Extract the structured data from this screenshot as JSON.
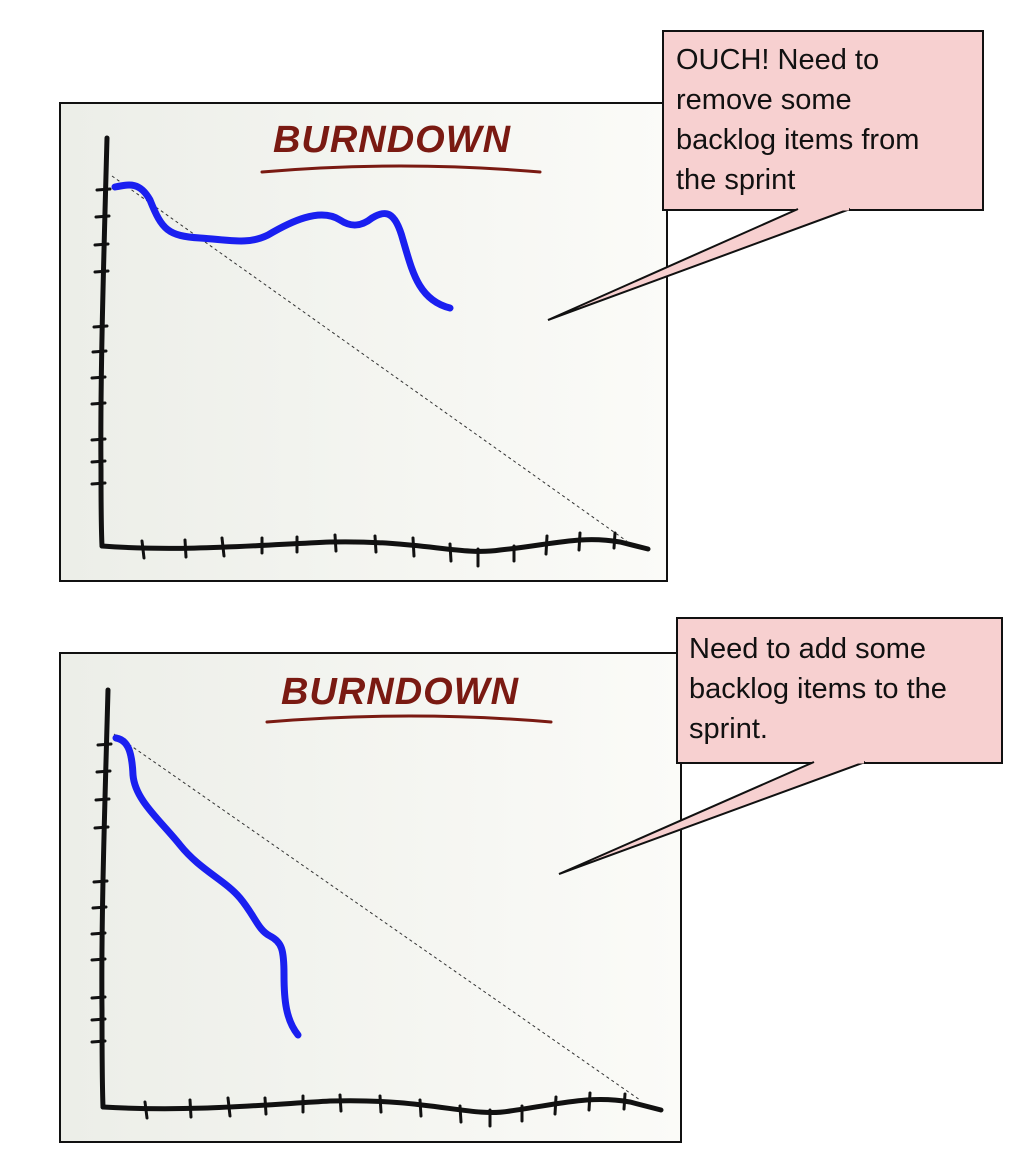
{
  "panels": [
    {
      "chart_data": {
        "type": "line",
        "title": "BURNDOWN",
        "series": [
          {
            "kind": "ideal",
            "style": "dashed",
            "color": "#333333"
          },
          {
            "kind": "actual",
            "style": "solid",
            "color": "#1a1ff0"
          }
        ],
        "trend": "actual work rises above the ideal line (work added)"
      },
      "callout": {
        "text": "OUCH! Need to\nremove some\nbacklog items from\nthe sprint"
      }
    },
    {
      "chart_data": {
        "type": "line",
        "title": "BURNDOWN",
        "series": [
          {
            "kind": "ideal",
            "style": "dashed",
            "color": "#333333"
          },
          {
            "kind": "actual",
            "style": "solid",
            "color": "#1a1ff0"
          }
        ],
        "trend": "actual work drops well below the ideal line (ahead of schedule)"
      },
      "callout": {
        "text": "Need to add some\nbacklog items to the\nsprint."
      }
    }
  ],
  "colors": {
    "callout_fill": "#f7d0d0",
    "title": "#7a1a12",
    "actual_line": "#1a1ff0",
    "panel_fill": "#f3f4ef"
  }
}
